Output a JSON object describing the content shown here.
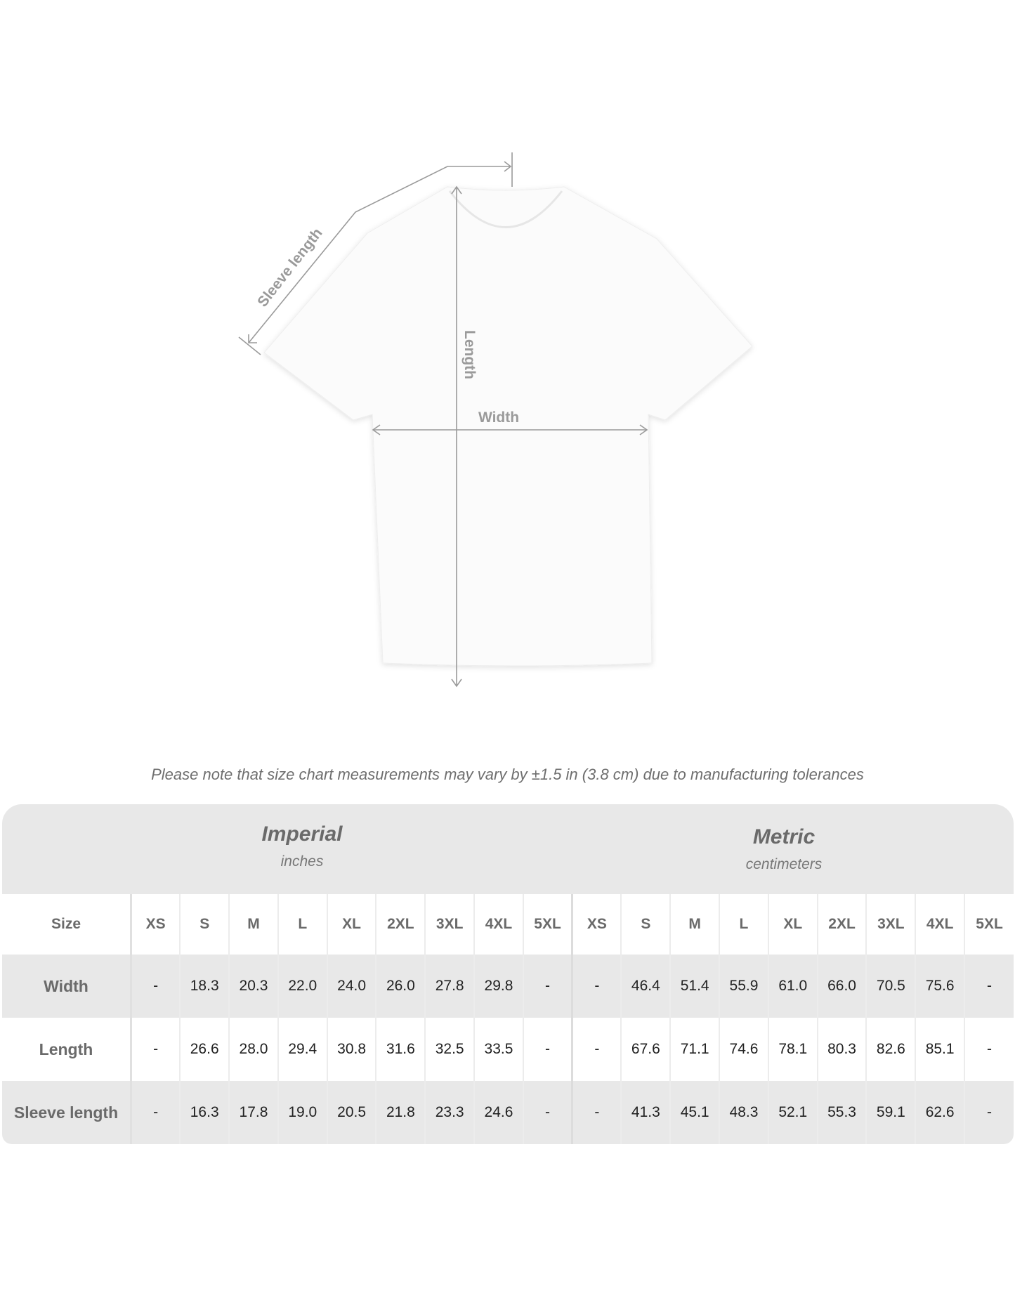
{
  "diagram": {
    "labels": {
      "sleeve": "Sleeve length",
      "length": "Length",
      "width": "Width"
    }
  },
  "note": "Please note that size chart measurements may vary by ±1.5 in (3.8 cm) due to manufacturing tolerances",
  "table": {
    "imperial": {
      "title": "Imperial",
      "unit": "inches"
    },
    "metric": {
      "title": "Metric",
      "unit": "centimeters"
    },
    "size_label": "Size",
    "sizes": [
      "XS",
      "S",
      "M",
      "L",
      "XL",
      "2XL",
      "3XL",
      "4XL",
      "5XL"
    ],
    "rows": [
      {
        "label": "Width",
        "imperial": [
          "-",
          "18.3",
          "20.3",
          "22.0",
          "24.0",
          "26.0",
          "27.8",
          "29.8",
          "-"
        ],
        "metric": [
          "-",
          "46.4",
          "51.4",
          "55.9",
          "61.0",
          "66.0",
          "70.5",
          "75.6",
          "-"
        ]
      },
      {
        "label": "Length",
        "imperial": [
          "-",
          "26.6",
          "28.0",
          "29.4",
          "30.8",
          "31.6",
          "32.5",
          "33.5",
          "-"
        ],
        "metric": [
          "-",
          "67.6",
          "71.1",
          "74.6",
          "78.1",
          "80.3",
          "82.6",
          "85.1",
          "-"
        ]
      },
      {
        "label": "Sleeve length",
        "imperial": [
          "-",
          "16.3",
          "17.8",
          "19.0",
          "20.5",
          "21.8",
          "23.3",
          "24.6",
          "-"
        ],
        "metric": [
          "-",
          "41.3",
          "45.1",
          "48.3",
          "52.1",
          "55.3",
          "59.1",
          "62.6",
          "-"
        ]
      }
    ]
  }
}
